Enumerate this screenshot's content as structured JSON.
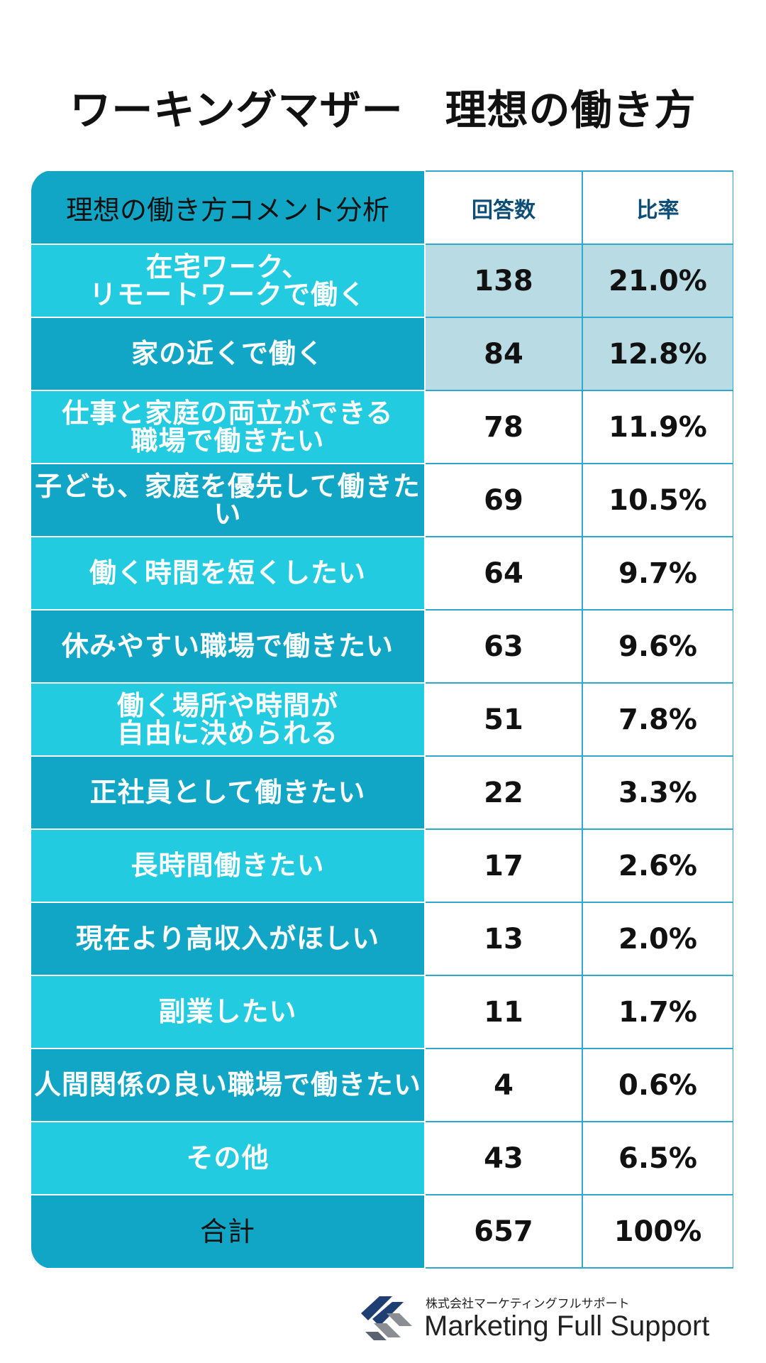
{
  "title": "ワーキングマザー　理想の働き方",
  "colors": {
    "row_light": "#23cbe0",
    "row_dark": "#12a6c6",
    "highlight": "#b9dbe3",
    "header_text": "#0d4e78",
    "border": "#2fa8d0"
  },
  "chart_data": {
    "type": "table",
    "title": "ワーキングマザー　理想の働き方",
    "columns": [
      "理想の働き方コメント分析",
      "回答数",
      "比率"
    ],
    "rows": [
      {
        "label": "在宅ワーク、\nリモートワークで働く",
        "count": "138",
        "ratio": "21.0%"
      },
      {
        "label": "家の近くで働く",
        "count": "84",
        "ratio": "12.8%"
      },
      {
        "label": "仕事と家庭の両立ができる\n職場で働きたい",
        "count": "78",
        "ratio": "11.9%"
      },
      {
        "label": "子ども、家庭を優先して働きたい",
        "count": "69",
        "ratio": "10.5%"
      },
      {
        "label": "働く時間を短くしたい",
        "count": "64",
        "ratio": "9.7%"
      },
      {
        "label": "休みやすい職場で働きたい",
        "count": "63",
        "ratio": "9.6%"
      },
      {
        "label": "働く場所や時間が\n自由に決められる",
        "count": "51",
        "ratio": "7.8%"
      },
      {
        "label": "正社員として働きたい",
        "count": "22",
        "ratio": "3.3%"
      },
      {
        "label": "長時間働きたい",
        "count": "17",
        "ratio": "2.6%"
      },
      {
        "label": "現在より高収入がほしい",
        "count": "13",
        "ratio": "2.0%"
      },
      {
        "label": "副業したい",
        "count": "11",
        "ratio": "1.7%"
      },
      {
        "label": "人間関係の良い職場で働きたい",
        "count": "4",
        "ratio": "0.6%"
      },
      {
        "label": "その他",
        "count": "43",
        "ratio": "6.5%"
      }
    ],
    "total": {
      "label": "合計",
      "count": "657",
      "ratio": "100%"
    },
    "highlighted_rows": [
      0,
      1
    ]
  },
  "footer": {
    "company_jp": "株式会社マーケティングフルサポート",
    "company_en": "Marketing Full Support",
    "logo_icon": "mfs-logo-icon"
  }
}
